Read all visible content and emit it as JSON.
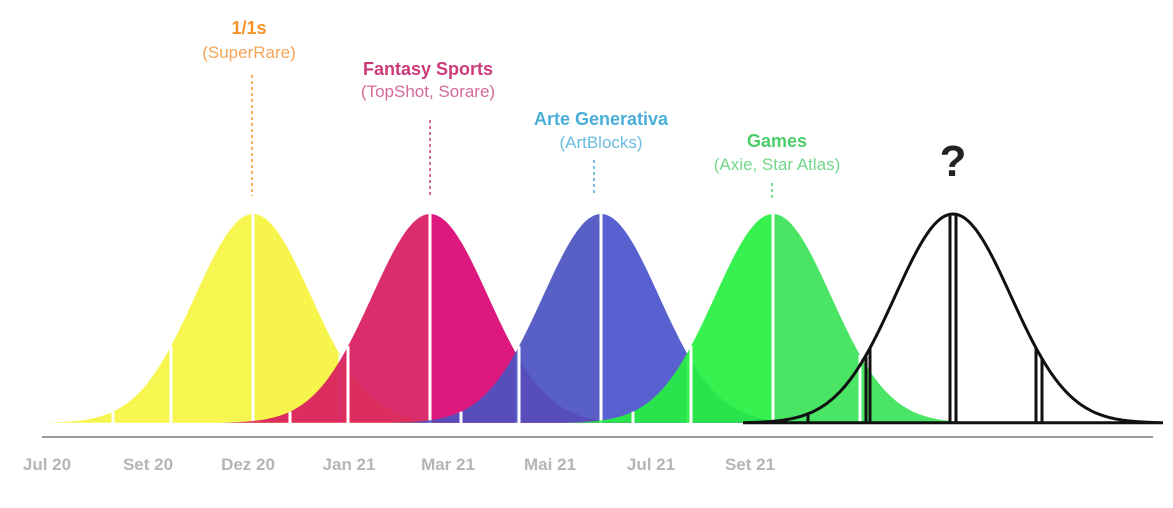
{
  "colors": {
    "superrare": "#f5932a",
    "fantasy": "#cc3a7a",
    "artblocks": "#4aaed8",
    "games": "#4ccd6a",
    "axis_text": "#b5b5b5",
    "question": "#222222"
  },
  "labels": {
    "superrare": {
      "title": "1/1s",
      "subtitle": "(SuperRare)"
    },
    "fantasy": {
      "title": "Fantasy Sports",
      "subtitle": "(TopShot, Sorare)"
    },
    "artblocks": {
      "title": "Arte Generativa",
      "subtitle": "(ArtBlocks)"
    },
    "games": {
      "title": "Games",
      "subtitle": "(Axie, Star Atlas)"
    },
    "future": {
      "mark": "?"
    }
  },
  "axis": {
    "ticks": [
      "Jul 20",
      "Set 20",
      "Dez 20",
      "Jan 21",
      "Mar 21",
      "Mai 21",
      "Jul 21",
      "Set 21"
    ]
  },
  "curves": [
    {
      "name": "superrare-curve",
      "fill": "#f6f542",
      "light": "#f7f54a",
      "mid": "#ece05e",
      "dark": "#f0c84a"
    },
    {
      "name": "fantasy-curve",
      "fill": "#d81b60",
      "light": "#dd0a8a",
      "mid": "#d8245a",
      "dark": "#d8302a"
    },
    {
      "name": "artblocks-curve",
      "fill": "#4b52c0",
      "light": "#5a63d8",
      "mid": "#4d56c2",
      "dark": "#2a76c6"
    },
    {
      "name": "games-curve",
      "fill": "#25f040",
      "light": "#58dd74",
      "mid": "#1ef03c",
      "dark": "#38df3a"
    },
    {
      "name": "future-curve",
      "fill": "none"
    }
  ]
}
